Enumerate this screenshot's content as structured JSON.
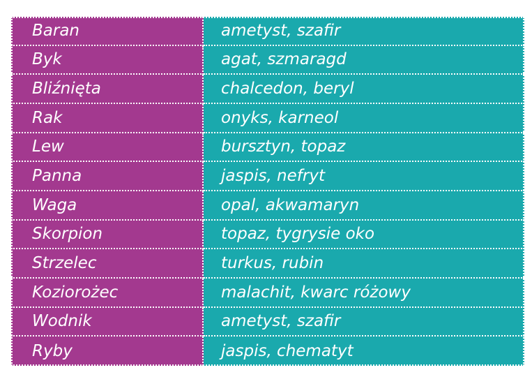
{
  "table": {
    "rows": [
      [
        "Baran",
        "ametyst, szafir"
      ],
      [
        "Byk",
        "agat, szmaragd"
      ],
      [
        "Bliźnięta",
        "chalcedon, beryl"
      ],
      [
        "Rak",
        "onyks, karneol"
      ],
      [
        "Lew",
        "bursztyn, topaz"
      ],
      [
        "Panna",
        "jaspis, nefryt"
      ],
      [
        "Waga",
        "opal, akwamaryn"
      ],
      [
        "Skorpion",
        "topaz, tygrysie oko"
      ],
      [
        "Strzelec",
        "turkus, rubin"
      ],
      [
        "Koziorożec",
        "malachit, kwarc różowy"
      ],
      [
        "Wodnik",
        "ametyst, szafir"
      ],
      [
        "Ryby",
        "jaspis, chematyt"
      ]
    ]
  }
}
